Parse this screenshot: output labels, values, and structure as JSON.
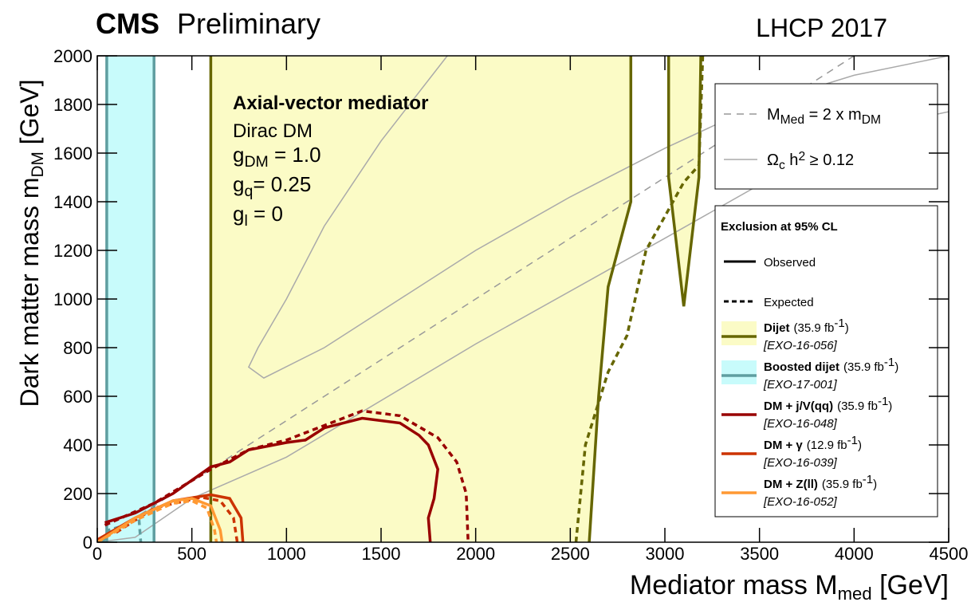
{
  "chart_data": {
    "type": "line",
    "header": {
      "experiment": "CMS",
      "status": "Preliminary",
      "conference": "LHCP 2017"
    },
    "x_label": [
      {
        "text": "Mediator mass M"
      },
      {
        "sub": "med"
      },
      {
        "text": " [GeV]"
      }
    ],
    "y_label": [
      {
        "text": "Dark matter mass m"
      },
      {
        "sub": "DM"
      },
      {
        "text": " [GeV]"
      }
    ],
    "annotation": {
      "title": "Axial-vector mediator",
      "model": "Dirac DM",
      "couplings": [
        [
          {
            "text": "g"
          },
          {
            "sub": "DM"
          },
          {
            "text": " = 1.0"
          }
        ],
        [
          {
            "text": "g"
          },
          {
            "sub": "q"
          },
          {
            "text": "= 0.25"
          }
        ],
        [
          {
            "text": "g"
          },
          {
            "sub": "l"
          },
          {
            "text": " = 0"
          }
        ]
      ]
    },
    "xlim": [
      0,
      4500
    ],
    "ylim": [
      0,
      2000
    ],
    "xticks": [
      0,
      500,
      1000,
      1500,
      2000,
      2500,
      3000,
      3500,
      4000,
      4500
    ],
    "yticks": [
      0,
      200,
      400,
      600,
      800,
      1000,
      1200,
      1400,
      1600,
      1800,
      2000
    ],
    "reference_lines": [
      {
        "label": [
          {
            "text": "M"
          },
          {
            "sub": "Med"
          },
          {
            "text": " = 2 x m"
          },
          {
            "sub": "DM"
          }
        ],
        "color": "#999999",
        "dash": "9 7",
        "x": [
          0,
          4000
        ],
        "values": [
          0,
          2000
        ]
      },
      {
        "label": [
          {
            "text": "Ω"
          },
          {
            "sub": "c"
          },
          {
            "text": " h"
          },
          {
            "sup": "2"
          },
          {
            "text": " ≥ 0.12"
          }
        ],
        "color": "#aaaaaa",
        "dash": "",
        "x": [
          1850,
          1500,
          1200,
          1000,
          850,
          800,
          880,
          1200,
          1600,
          2000,
          2500,
          3000,
          3500,
          4000,
          4500,
          null,
          0,
          200,
          500,
          1000,
          2000,
          3000,
          4000,
          4500
        ],
        "values": [
          2000,
          1650,
          1300,
          1000,
          800,
          720,
          675,
          800,
          1000,
          1200,
          1420,
          1620,
          1800,
          1920,
          2000,
          null,
          0,
          20,
          180,
          350,
          815,
          1250,
          1690,
          1770
        ]
      }
    ],
    "legend": {
      "title": "Exclusion at 95% CL",
      "observed": "Observed",
      "expected": "Expected"
    },
    "series": [
      {
        "name": "Dijet",
        "lumi": "(35.9 fb",
        "lumi_exp": "-1",
        "lumi_close": ")",
        "ref": "[EXO-16-056]",
        "color": "#666600",
        "fill": "#fbfbc6",
        "observed": {
          "x": [
            600,
            600,
            null,
            2820,
            2820,
            2700,
            2650,
            2600,
            null,
            3020,
            3020,
            3100,
            3180,
            3190
          ],
          "values": [
            0,
            2000,
            null,
            2000,
            1400,
            1050,
            600,
            0,
            null,
            2000,
            1500,
            970,
            1500,
            2000
          ]
        },
        "expected": {
          "x": [
            2530,
            2580,
            2700,
            2800,
            2900,
            3100,
            3180,
            3200
          ],
          "values": [
            0,
            400,
            700,
            850,
            1200,
            1480,
            1550,
            2000
          ]
        }
      },
      {
        "name": "Boosted dijet",
        "lumi": "(35.9 fb",
        "lumi_exp": "-1",
        "lumi_close": ")",
        "ref": "[EXO-17-001]",
        "color": "#5f9ea0",
        "fill": "#c8fbfb",
        "observed": {
          "x": [
            50,
            50,
            null,
            300,
            300
          ],
          "values": [
            0,
            2000,
            null,
            2000,
            0
          ]
        },
        "expected": {
          "x": [
            30,
            60,
            150,
            220,
            230
          ],
          "values": [
            0,
            50,
            70,
            100,
            0
          ]
        }
      },
      {
        "name": "DM + j/V(qq)",
        "lumi": "(35.9 fb",
        "lumi_exp": "-1",
        "lumi_close": ")",
        "ref": "[EXO-16-048]",
        "color": "#990000",
        "fill": null,
        "observed": {
          "x": [
            40,
            200,
            400,
            600,
            700,
            800,
            1000,
            1100,
            1200,
            1400,
            1600,
            1700,
            1750,
            1800,
            1780,
            1750,
            1760
          ],
          "values": [
            80,
            120,
            200,
            310,
            330,
            380,
            410,
            420,
            470,
            510,
            490,
            440,
            400,
            300,
            180,
            100,
            0
          ]
        },
        "expected": {
          "x": [
            40,
            300,
            600,
            800,
            1000,
            1200,
            1400,
            1600,
            1800,
            1900,
            1950,
            1960
          ],
          "values": [
            70,
            160,
            300,
            380,
            420,
            480,
            540,
            520,
            430,
            330,
            200,
            0
          ]
        }
      },
      {
        "name": "DM + γ",
        "lumi": "(12.9 fb",
        "lumi_exp": "-1",
        "lumi_close": ")",
        "ref": "[EXO-16-039]",
        "color": "#cc3300",
        "fill": null,
        "observed": {
          "x": [
            0,
            200,
            400,
            600,
            700,
            760,
            770
          ],
          "values": [
            10,
            100,
            170,
            195,
            180,
            100,
            0
          ]
        },
        "expected": {
          "x": [
            100,
            300,
            550,
            650,
            720,
            740
          ],
          "values": [
            40,
            140,
            185,
            170,
            100,
            0
          ]
        }
      },
      {
        "name": "DM + Z(ll)",
        "lumi": "(35.9 fb",
        "lumi_exp": "-1",
        "lumi_close": ")",
        "ref": "[EXO-16-052]",
        "color": "#ff9933",
        "fill": null,
        "observed": {
          "x": [
            0,
            200,
            400,
            500,
            600,
            650,
            660
          ],
          "values": [
            0,
            100,
            170,
            180,
            150,
            50,
            0
          ]
        },
        "expected": {
          "x": [
            0,
            200,
            400,
            500,
            580,
            620,
            630
          ],
          "values": [
            0,
            90,
            160,
            170,
            140,
            50,
            0
          ]
        }
      }
    ]
  }
}
